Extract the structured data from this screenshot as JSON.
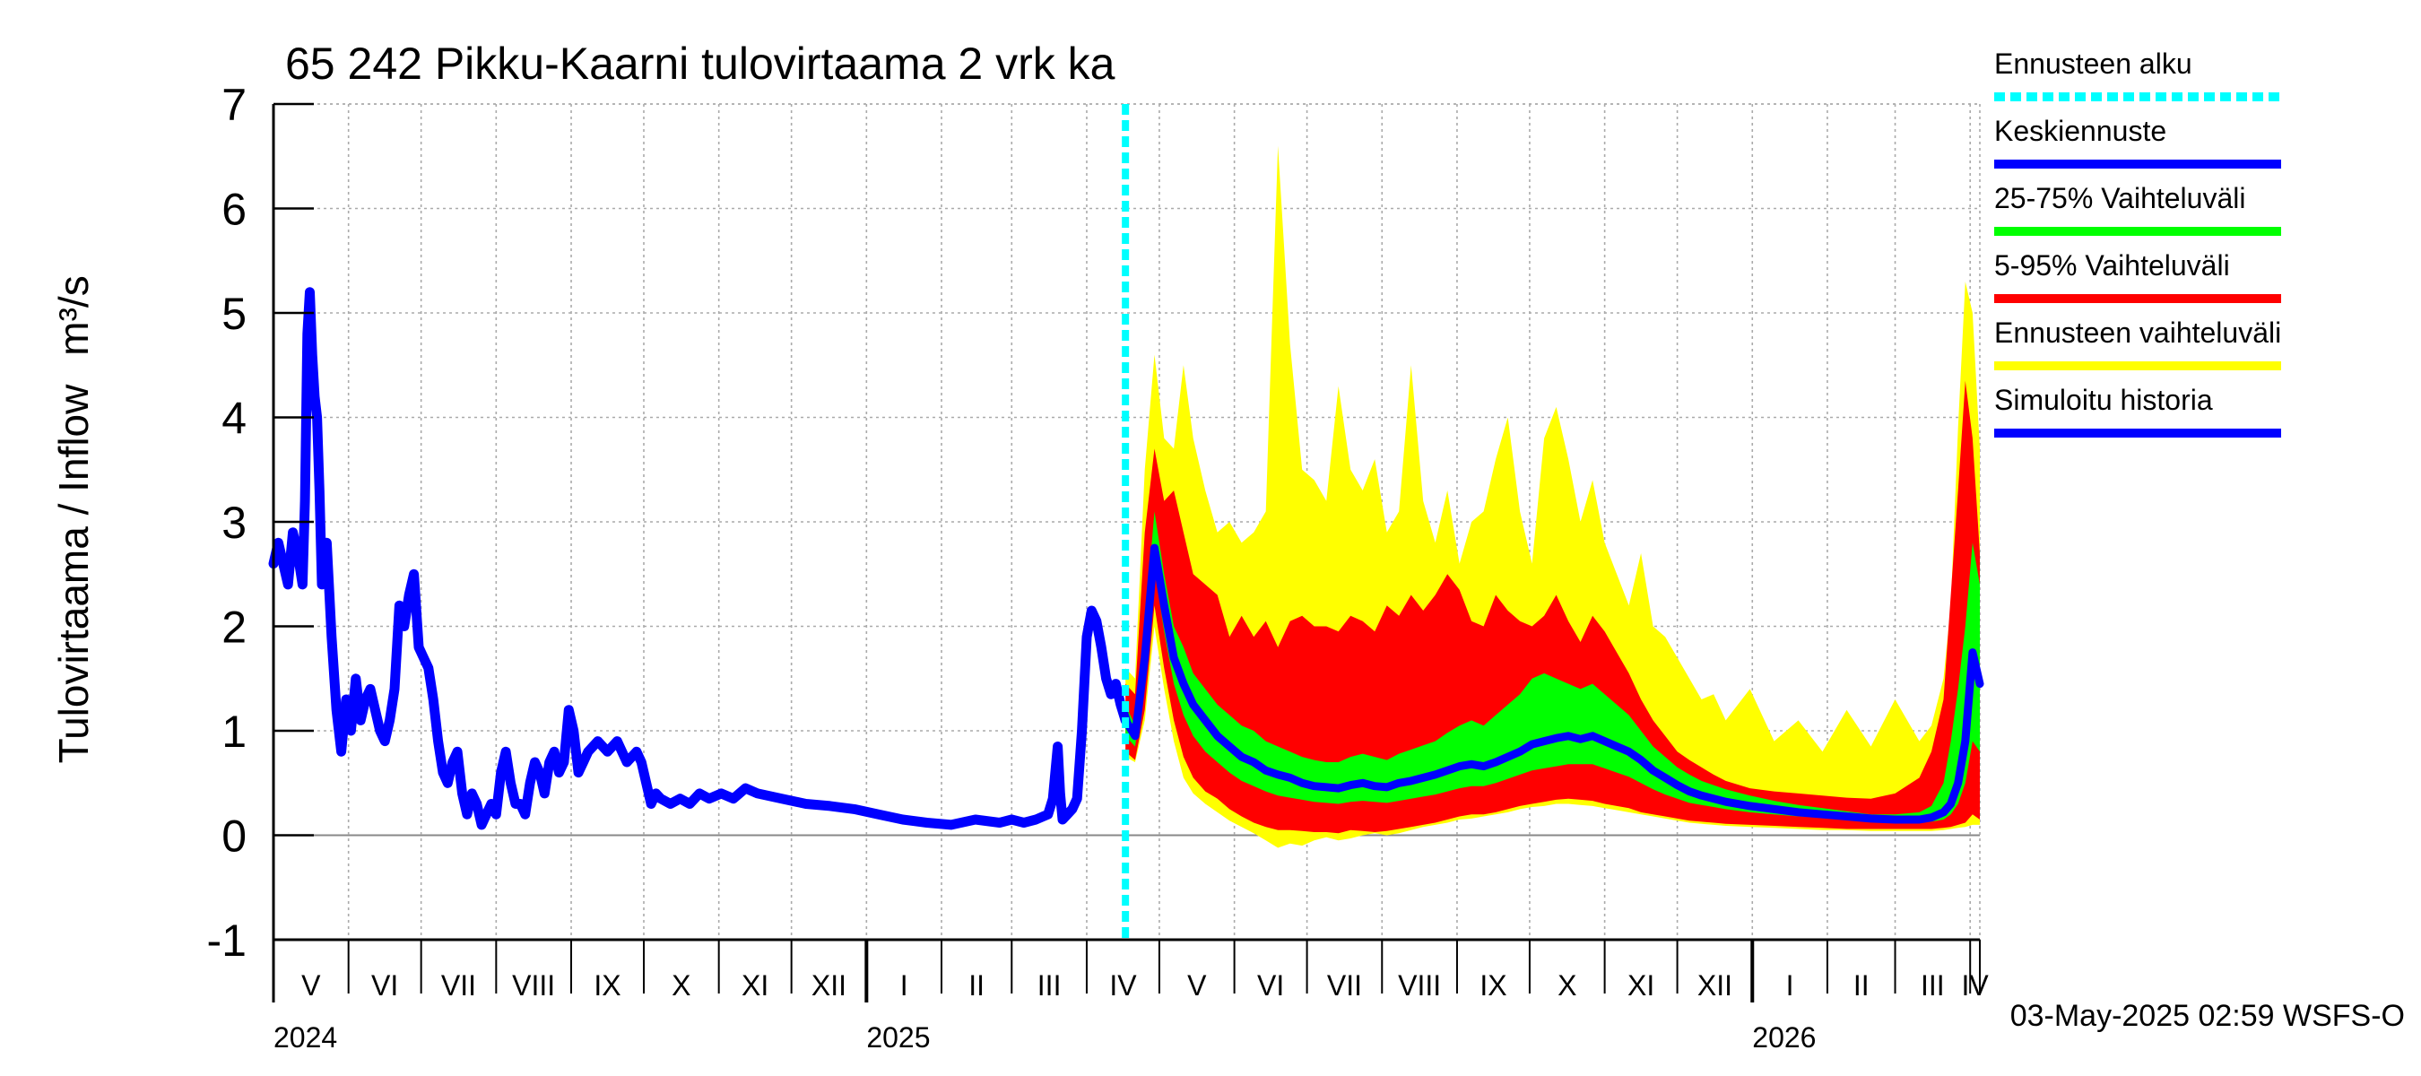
{
  "chart_data": {
    "type": "area",
    "title": "65 242 Pikku-Kaarni tulovirtaama 2 vrk ka",
    "ylabel": "Tulovirtaama / Inflow",
    "yunit": "m³/s",
    "ylim": [
      -1,
      7
    ],
    "yticks": [
      -1,
      0,
      1,
      2,
      3,
      4,
      5,
      6,
      7
    ],
    "xlim_days": [
      0,
      705
    ],
    "forecast_start_day": 352,
    "grid": true,
    "months": [
      {
        "label": "V",
        "start": 0
      },
      {
        "label": "VI",
        "start": 31
      },
      {
        "label": "VII",
        "start": 61
      },
      {
        "label": "VIII",
        "start": 92
      },
      {
        "label": "IX",
        "start": 123
      },
      {
        "label": "X",
        "start": 153
      },
      {
        "label": "XI",
        "start": 184
      },
      {
        "label": "XII",
        "start": 214
      },
      {
        "label": "I",
        "start": 245
      },
      {
        "label": "II",
        "start": 276
      },
      {
        "label": "III",
        "start": 305
      },
      {
        "label": "IV",
        "start": 336
      },
      {
        "label": "V",
        "start": 366
      },
      {
        "label": "VI",
        "start": 397
      },
      {
        "label": "VII",
        "start": 427
      },
      {
        "label": "VIII",
        "start": 458
      },
      {
        "label": "IX",
        "start": 489
      },
      {
        "label": "X",
        "start": 519
      },
      {
        "label": "XI",
        "start": 550
      },
      {
        "label": "XII",
        "start": 580
      },
      {
        "label": "I",
        "start": 611
      },
      {
        "label": "II",
        "start": 642
      },
      {
        "label": "III",
        "start": 670
      },
      {
        "label": "IV",
        "start": 701
      }
    ],
    "month_end": 731,
    "years": [
      {
        "label": "2024",
        "day": 0
      },
      {
        "label": "2025",
        "day": 245
      },
      {
        "label": "2026",
        "day": 611
      }
    ],
    "legend": [
      {
        "label": "Ennusteen alku",
        "color": "#00ffff",
        "style": "dashed"
      },
      {
        "label": "Keskiennuste",
        "color": "#0000ff",
        "style": "solid"
      },
      {
        "label": "25-75% Vaihteluväli",
        "color": "#00ff00",
        "style": "solid"
      },
      {
        "label": "5-95% Vaihteluväli",
        "color": "#ff0000",
        "style": "solid"
      },
      {
        "label": "Ennusteen vaihteluväli",
        "color": "#ffff00",
        "style": "solid"
      },
      {
        "label": "Simuloitu historia",
        "color": "#0000ff",
        "style": "solid"
      }
    ],
    "history": {
      "name": "Simuloitu historia",
      "x": [
        0,
        2,
        4,
        6,
        8,
        10,
        12,
        13,
        14,
        15,
        16,
        17,
        18,
        19,
        20,
        21,
        22,
        24,
        26,
        28,
        30,
        32,
        34,
        36,
        38,
        40,
        42,
        44,
        46,
        48,
        50,
        52,
        54,
        56,
        58,
        60,
        62,
        64,
        66,
        68,
        70,
        72,
        74,
        76,
        78,
        80,
        82,
        84,
        86,
        88,
        90,
        92,
        94,
        96,
        98,
        100,
        102,
        104,
        106,
        108,
        110,
        112,
        114,
        116,
        118,
        120,
        122,
        124,
        126,
        128,
        130,
        134,
        138,
        142,
        146,
        150,
        152,
        154,
        156,
        158,
        160,
        164,
        168,
        172,
        176,
        180,
        185,
        190,
        195,
        200,
        210,
        220,
        230,
        240,
        250,
        260,
        270,
        280,
        290,
        300,
        305,
        310,
        315,
        320,
        322,
        324,
        325,
        326,
        328,
        330,
        332,
        334,
        336,
        338,
        340,
        342,
        344,
        346,
        348,
        350,
        352
      ],
      "values": [
        2.6,
        2.8,
        2.6,
        2.4,
        2.9,
        2.7,
        2.4,
        3.2,
        4.8,
        5.2,
        4.6,
        4.2,
        4.0,
        3.3,
        2.4,
        2.6,
        2.8,
        1.9,
        1.2,
        0.8,
        1.3,
        1.0,
        1.5,
        1.1,
        1.3,
        1.4,
        1.2,
        1.0,
        0.9,
        1.1,
        1.4,
        2.2,
        2.0,
        2.3,
        2.5,
        1.8,
        1.7,
        1.6,
        1.3,
        0.9,
        0.6,
        0.5,
        0.7,
        0.8,
        0.4,
        0.2,
        0.4,
        0.3,
        0.1,
        0.2,
        0.3,
        0.2,
        0.6,
        0.8,
        0.5,
        0.3,
        0.3,
        0.2,
        0.5,
        0.7,
        0.6,
        0.4,
        0.7,
        0.8,
        0.6,
        0.7,
        1.2,
        1.0,
        0.6,
        0.7,
        0.8,
        0.9,
        0.8,
        0.9,
        0.7,
        0.8,
        0.7,
        0.5,
        0.3,
        0.4,
        0.35,
        0.3,
        0.35,
        0.3,
        0.4,
        0.35,
        0.4,
        0.35,
        0.45,
        0.4,
        0.35,
        0.3,
        0.28,
        0.25,
        0.2,
        0.15,
        0.12,
        0.1,
        0.15,
        0.12,
        0.15,
        0.12,
        0.15,
        0.2,
        0.35,
        0.85,
        0.4,
        0.15,
        0.2,
        0.25,
        0.35,
        1.0,
        1.9,
        2.15,
        2.05,
        1.8,
        1.5,
        1.35,
        1.45,
        1.25,
        1.1
      ]
    },
    "forecast": {
      "x": [
        352,
        356,
        360,
        364,
        368,
        372,
        376,
        380,
        385,
        390,
        395,
        400,
        405,
        410,
        415,
        420,
        425,
        430,
        435,
        440,
        445,
        450,
        455,
        460,
        465,
        470,
        475,
        480,
        485,
        490,
        495,
        500,
        505,
        510,
        515,
        520,
        525,
        530,
        535,
        540,
        545,
        550,
        555,
        560,
        565,
        570,
        575,
        580,
        585,
        590,
        595,
        600,
        610,
        620,
        630,
        640,
        650,
        660,
        670,
        680,
        685,
        690,
        693,
        696,
        699,
        702,
        705
      ],
      "median": [
        1.1,
        0.95,
        1.7,
        2.75,
        2.2,
        1.7,
        1.45,
        1.25,
        1.1,
        0.95,
        0.85,
        0.75,
        0.7,
        0.62,
        0.58,
        0.55,
        0.5,
        0.47,
        0.46,
        0.45,
        0.48,
        0.5,
        0.47,
        0.46,
        0.5,
        0.52,
        0.55,
        0.58,
        0.62,
        0.66,
        0.68,
        0.66,
        0.7,
        0.75,
        0.8,
        0.87,
        0.9,
        0.93,
        0.95,
        0.92,
        0.95,
        0.9,
        0.85,
        0.8,
        0.72,
        0.62,
        0.55,
        0.48,
        0.42,
        0.38,
        0.35,
        0.32,
        0.28,
        0.25,
        0.22,
        0.2,
        0.18,
        0.16,
        0.15,
        0.15,
        0.17,
        0.22,
        0.3,
        0.5,
        0.9,
        1.75,
        1.45
      ],
      "p25": [
        0.95,
        0.85,
        1.5,
        2.55,
        1.95,
        1.45,
        1.15,
        0.95,
        0.8,
        0.7,
        0.6,
        0.52,
        0.47,
        0.42,
        0.38,
        0.36,
        0.34,
        0.32,
        0.31,
        0.3,
        0.32,
        0.33,
        0.32,
        0.31,
        0.33,
        0.35,
        0.37,
        0.39,
        0.42,
        0.45,
        0.47,
        0.47,
        0.5,
        0.54,
        0.58,
        0.62,
        0.64,
        0.66,
        0.68,
        0.68,
        0.68,
        0.64,
        0.6,
        0.56,
        0.5,
        0.44,
        0.39,
        0.35,
        0.31,
        0.29,
        0.27,
        0.25,
        0.22,
        0.2,
        0.18,
        0.17,
        0.15,
        0.13,
        0.12,
        0.12,
        0.13,
        0.15,
        0.2,
        0.3,
        0.5,
        0.9,
        0.8
      ],
      "p75": [
        1.25,
        1.05,
        2.0,
        3.1,
        2.5,
        2.0,
        1.8,
        1.55,
        1.4,
        1.25,
        1.15,
        1.05,
        1.0,
        0.9,
        0.85,
        0.8,
        0.75,
        0.72,
        0.7,
        0.7,
        0.75,
        0.78,
        0.75,
        0.72,
        0.78,
        0.82,
        0.86,
        0.9,
        0.98,
        1.05,
        1.1,
        1.05,
        1.15,
        1.25,
        1.35,
        1.5,
        1.55,
        1.5,
        1.45,
        1.4,
        1.45,
        1.35,
        1.25,
        1.15,
        1.0,
        0.85,
        0.75,
        0.65,
        0.58,
        0.52,
        0.48,
        0.44,
        0.38,
        0.33,
        0.29,
        0.26,
        0.23,
        0.2,
        0.2,
        0.22,
        0.28,
        0.5,
        0.9,
        1.4,
        2.0,
        2.8,
        2.4
      ],
      "p05": [
        0.8,
        0.72,
        1.2,
        2.2,
        1.6,
        1.1,
        0.75,
        0.55,
        0.42,
        0.35,
        0.25,
        0.18,
        0.12,
        0.08,
        0.05,
        0.05,
        0.04,
        0.03,
        0.03,
        0.02,
        0.05,
        0.04,
        0.03,
        0.04,
        0.06,
        0.08,
        0.1,
        0.12,
        0.15,
        0.18,
        0.2,
        0.2,
        0.22,
        0.25,
        0.28,
        0.3,
        0.32,
        0.34,
        0.35,
        0.34,
        0.33,
        0.3,
        0.28,
        0.26,
        0.22,
        0.2,
        0.18,
        0.16,
        0.14,
        0.13,
        0.12,
        0.11,
        0.1,
        0.09,
        0.08,
        0.07,
        0.06,
        0.06,
        0.06,
        0.06,
        0.06,
        0.07,
        0.08,
        0.1,
        0.12,
        0.2,
        0.15
      ],
      "p95": [
        1.45,
        1.35,
        2.9,
        3.7,
        3.2,
        3.3,
        2.9,
        2.5,
        2.4,
        2.3,
        1.9,
        2.1,
        1.9,
        2.05,
        1.8,
        2.05,
        2.1,
        2.0,
        2.0,
        1.95,
        2.1,
        2.05,
        1.95,
        2.2,
        2.1,
        2.3,
        2.15,
        2.3,
        2.5,
        2.35,
        2.05,
        2.0,
        2.3,
        2.15,
        2.05,
        2.0,
        2.1,
        2.3,
        2.05,
        1.85,
        2.1,
        1.95,
        1.75,
        1.55,
        1.3,
        1.1,
        0.95,
        0.8,
        0.72,
        0.65,
        0.58,
        0.52,
        0.45,
        0.42,
        0.4,
        0.38,
        0.36,
        0.35,
        0.4,
        0.55,
        0.8,
        1.3,
        2.3,
        3.3,
        4.35,
        3.8,
        2.7
      ],
      "min": [
        0.75,
        0.7,
        1.1,
        2.0,
        1.4,
        0.9,
        0.55,
        0.4,
        0.3,
        0.22,
        0.14,
        0.08,
        0.02,
        -0.05,
        -0.12,
        -0.08,
        -0.1,
        -0.05,
        -0.02,
        -0.05,
        -0.03,
        0.0,
        0.02,
        0.0,
        0.02,
        0.05,
        0.08,
        0.1,
        0.12,
        0.15,
        0.16,
        0.18,
        0.2,
        0.22,
        0.25,
        0.27,
        0.28,
        0.3,
        0.3,
        0.29,
        0.28,
        0.26,
        0.24,
        0.22,
        0.2,
        0.18,
        0.16,
        0.14,
        0.12,
        0.11,
        0.1,
        0.09,
        0.08,
        0.07,
        0.06,
        0.05,
        0.05,
        0.04,
        0.04,
        0.04,
        0.04,
        0.05,
        0.06,
        0.07,
        0.08,
        0.1,
        0.1
      ],
      "max": [
        1.6,
        1.5,
        3.5,
        4.6,
        3.8,
        3.7,
        4.5,
        3.8,
        3.3,
        2.9,
        3.0,
        2.8,
        2.9,
        3.1,
        6.6,
        4.7,
        3.5,
        3.4,
        3.2,
        4.3,
        3.5,
        3.3,
        3.6,
        2.9,
        3.1,
        4.5,
        3.2,
        2.8,
        3.3,
        2.6,
        3.0,
        3.1,
        3.6,
        4.0,
        3.1,
        2.6,
        3.8,
        4.1,
        3.6,
        3.0,
        3.4,
        2.8,
        2.5,
        2.2,
        2.7,
        2.0,
        1.9,
        1.7,
        1.5,
        1.3,
        1.35,
        1.1,
        1.4,
        0.9,
        1.1,
        0.8,
        1.2,
        0.85,
        1.3,
        0.9,
        1.05,
        1.5,
        2.2,
        3.9,
        5.3,
        5.0,
        3.7
      ]
    }
  },
  "footer": {
    "timestamp": "03-May-2025 02:59 WSFS-O"
  }
}
